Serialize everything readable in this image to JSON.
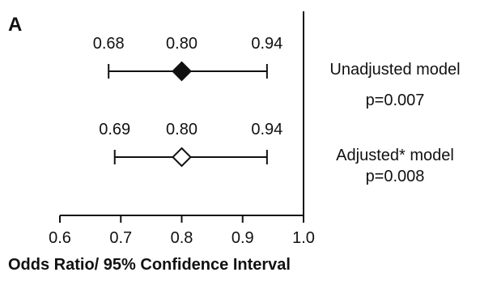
{
  "panel_label": "A",
  "chart_data": {
    "type": "forest",
    "xlabel": "Odds Ratio/ 95% Confidence Interval",
    "xlim": [
      0.6,
      1.0
    ],
    "xticks": [
      0.6,
      0.7,
      0.8,
      0.9,
      1.0
    ],
    "xtick_labels": [
      "0.6",
      "0.7",
      "0.8",
      "0.9",
      "1.0"
    ],
    "reference_line": 1.0,
    "series": [
      {
        "name": "Unadjusted model",
        "pvalue": "p=0.007",
        "or": 0.8,
        "lower": 0.68,
        "upper": 0.94,
        "or_label": "0.80",
        "lower_label": "0.68",
        "upper_label": "0.94",
        "marker": "filled-diamond"
      },
      {
        "name": "Adjusted* model",
        "pvalue": "p=0.008",
        "or": 0.8,
        "lower": 0.69,
        "upper": 0.94,
        "or_label": "0.80",
        "lower_label": "0.69",
        "upper_label": "0.94",
        "marker": "open-diamond"
      }
    ]
  }
}
